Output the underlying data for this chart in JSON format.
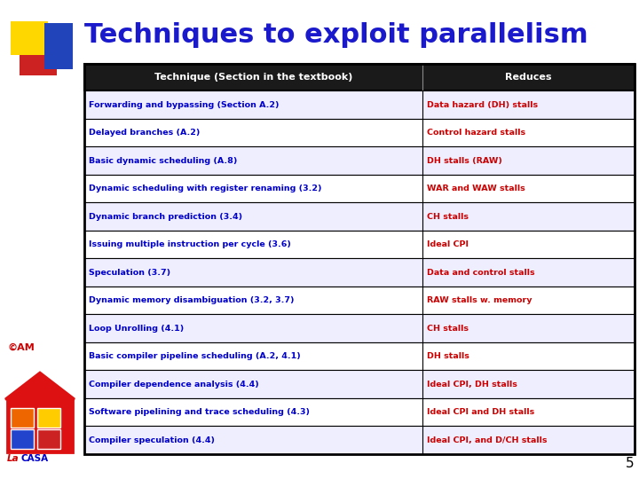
{
  "title": "Techniques to exploit parallelism",
  "title_color": "#1a1acc",
  "title_fontsize": 22,
  "header_col1": "Technique (Section in the textbook)",
  "header_col2": "Reduces",
  "header_bg": "#1a1a1a",
  "header_fg": "#ffffff",
  "col1_color": "#0000cc",
  "col2_color": "#cc0000",
  "rows": [
    [
      "Forwarding and bypassing (Section A.2)",
      "Data hazard (DH) stalls"
    ],
    [
      "Delayed branches (A.2)",
      "Control hazard stalls"
    ],
    [
      "Basic dynamic scheduling (A.8)",
      "DH stalls (RAW)"
    ],
    [
      "Dynamic scheduling with register renaming (3.2)",
      "WAR and WAW stalls"
    ],
    [
      "Dynamic branch prediction (3.4)",
      "CH stalls"
    ],
    [
      "Issuing multiple instruction per cycle (3.6)",
      "Ideal CPI"
    ],
    [
      "Speculation (3.7)",
      "Data and control stalls"
    ],
    [
      "Dynamic memory disambiguation (3.2, 3.7)",
      "RAW stalls w. memory"
    ],
    [
      "Loop Unrolling (4.1)",
      "CH stalls"
    ],
    [
      "Basic compiler pipeline scheduling (A.2, 4.1)",
      "DH stalls"
    ],
    [
      "Compiler dependence analysis (4.4)",
      "Ideal CPI, DH stalls"
    ],
    [
      "Software pipelining and trace scheduling (4.3)",
      "Ideal CPI and DH stalls"
    ],
    [
      "Compiler speculation (4.4)",
      "Ideal CPI, and D/CH stalls"
    ]
  ],
  "bg_color": "#ffffff",
  "page_number": "5",
  "row_underline_colors": [
    "#0000cc",
    "#0000cc",
    "#000000",
    "#0000cc",
    "#0000cc",
    "#0000cc",
    "#0000cc",
    "#0000cc",
    "#0000cc",
    "#000000",
    "#0000cc",
    "#0000cc",
    "#0000cc"
  ]
}
